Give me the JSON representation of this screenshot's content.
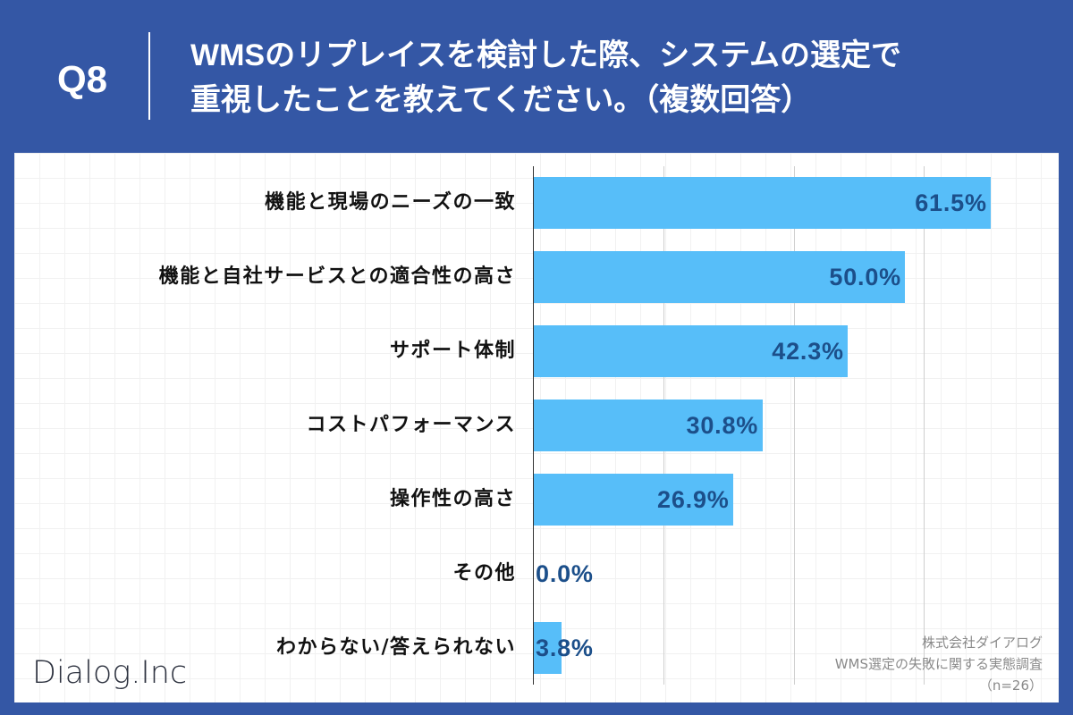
{
  "header": {
    "question_number": "Q8",
    "title_line1": "WMSのリプレイスを検討した際、システムの選定で",
    "title_line2": "重視したことを教えてください。（複数回答）"
  },
  "chart_data": {
    "type": "bar",
    "orientation": "horizontal",
    "categories": [
      "機能と現場のニーズの一致",
      "機能と自社サービスとの適合性の高さ",
      "サポート体制",
      "コストパフォーマンス",
      "操作性の高さ",
      "その他",
      "わからない/答えられない"
    ],
    "values": [
      61.5,
      50.0,
      42.3,
      30.8,
      26.9,
      0.0,
      3.8
    ],
    "value_labels": [
      "61.5%",
      "50.0%",
      "42.3%",
      "30.8%",
      "26.9%",
      "0.0%",
      "3.8%"
    ],
    "xlim": [
      0,
      70
    ],
    "grid": true,
    "grid_step": 17.5
  },
  "footer": {
    "logo": "Dialog.Inc",
    "source_lines": [
      "株式会社ダイアログ",
      "WMS選定の失敗に関する実態調査",
      "（n=26）"
    ]
  },
  "colors": {
    "background": "#3457A5",
    "header_text": "#FFFFFF",
    "bar": "#57BEF9",
    "value_label": "#1C4F8A",
    "category_label": "#111111",
    "axis": "#333333",
    "gridline": "#CFCFCF",
    "source_text": "#8A8A8A",
    "logo": "#2E3340"
  }
}
